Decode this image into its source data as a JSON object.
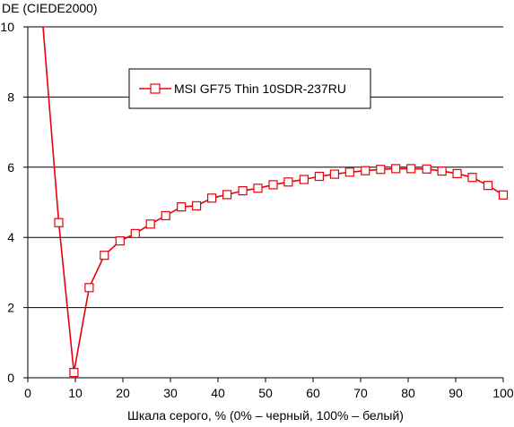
{
  "chart_data": {
    "type": "line",
    "ylabel": "DE (CIEDE2000)",
    "xlabel": "Шкала серого, % (0% – черный, 100% – белый)",
    "xlim": [
      0,
      100
    ],
    "ylim": [
      0,
      10
    ],
    "xticks": [
      0,
      10,
      20,
      30,
      40,
      50,
      60,
      70,
      80,
      90,
      100
    ],
    "yticks": [
      0,
      2,
      4,
      6,
      8,
      10
    ],
    "xtick_labels": [
      "0",
      "10",
      "20",
      "30",
      "40",
      "50",
      "60",
      "70",
      "80",
      "90",
      "100"
    ],
    "ytick_labels": [
      "0",
      "2",
      "4",
      "6",
      "8",
      "10"
    ],
    "grid": "horizontal",
    "legend_position": "top-center",
    "series": [
      {
        "name": "MSI GF75 Thin 10SDR-237RU",
        "color": "#e8000b",
        "marker": "square",
        "lead_in": {
          "x": 3.2,
          "y": 10
        },
        "x": [
          6.5,
          9.7,
          12.9,
          16.1,
          19.4,
          22.6,
          25.8,
          29.0,
          32.3,
          35.5,
          38.7,
          41.9,
          45.2,
          48.4,
          51.6,
          54.8,
          58.1,
          61.3,
          64.5,
          67.7,
          71.0,
          74.2,
          77.4,
          80.6,
          83.9,
          87.1,
          90.3,
          93.5,
          96.8,
          100
        ],
        "values": [
          4.42,
          0.15,
          2.57,
          3.49,
          3.9,
          4.11,
          4.38,
          4.62,
          4.87,
          4.9,
          5.12,
          5.22,
          5.33,
          5.4,
          5.5,
          5.58,
          5.65,
          5.74,
          5.8,
          5.86,
          5.9,
          5.94,
          5.96,
          5.96,
          5.95,
          5.89,
          5.82,
          5.71,
          5.48,
          5.21
        ]
      }
    ]
  }
}
